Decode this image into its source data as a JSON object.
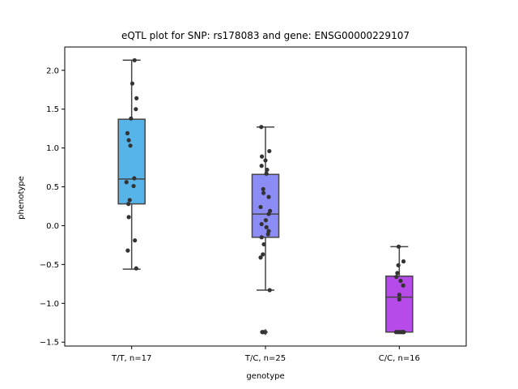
{
  "chart_data": {
    "type": "box",
    "title": "eQTL plot for SNP: rs178083 and gene: ENSG00000229107",
    "xlabel": "genotype",
    "ylabel": "phenotype",
    "ylim": [
      -1.55,
      2.3
    ],
    "yticks": [
      -1.5,
      -1.0,
      -0.5,
      0.0,
      0.5,
      1.0,
      1.5,
      2.0
    ],
    "ytick_labels": [
      "−1.5",
      "−1.0",
      "−0.5",
      "0.0",
      "0.5",
      "1.0",
      "1.5",
      "2.0"
    ],
    "grid": false,
    "categories": [
      "T/T, n=17",
      "T/C, n=25",
      "C/C, n=16"
    ],
    "colors": [
      "#56b4e9",
      "#8c8cf5",
      "#b74be9"
    ],
    "boxes": [
      {
        "q1": 0.28,
        "median": 0.6,
        "q3": 1.37,
        "whisker_low": -0.56,
        "whisker_high": 2.13,
        "outliers": []
      },
      {
        "q1": -0.15,
        "median": 0.15,
        "q3": 0.66,
        "whisker_low": -0.83,
        "whisker_high": 1.27,
        "outliers": [
          -1.37
        ]
      },
      {
        "q1": -1.37,
        "median": -0.92,
        "q3": -0.65,
        "whisker_low": -1.37,
        "whisker_high": -0.27,
        "outliers": []
      }
    ],
    "points": [
      [
        2.13,
        1.83,
        1.64,
        1.5,
        1.38,
        1.19,
        1.1,
        1.03,
        0.61,
        0.56,
        0.51,
        0.33,
        0.28,
        0.11,
        -0.19,
        -0.32,
        -0.55
      ],
      [
        1.27,
        0.96,
        0.89,
        0.84,
        0.77,
        0.72,
        0.67,
        0.47,
        0.42,
        0.37,
        0.24,
        0.19,
        0.15,
        0.07,
        0.02,
        -0.02,
        -0.07,
        -0.11,
        -0.15,
        -0.24,
        -0.37,
        -0.41,
        -0.83,
        -1.37,
        -1.37
      ],
      [
        -0.27,
        -0.46,
        -0.51,
        -0.61,
        -0.66,
        -0.71,
        -0.77,
        -0.89,
        -0.95,
        -1.37,
        -1.37,
        -1.37,
        -1.37,
        -1.37,
        -1.37,
        -1.37
      ]
    ],
    "jitter": [
      [
        0.09,
        0.02,
        0.15,
        0.13,
        -0.02,
        -0.13,
        -0.09,
        -0.04,
        0.08,
        -0.16,
        0.06,
        -0.06,
        -0.1,
        -0.09,
        0.1,
        -0.12,
        0.14
      ],
      [
        -0.13,
        0.12,
        -0.11,
        0.0,
        -0.12,
        0.05,
        0.03,
        -0.07,
        -0.06,
        0.1,
        -0.15,
        0.14,
        0.1,
        0.01,
        -0.12,
        0.03,
        0.1,
        0.08,
        -0.12,
        -0.05,
        -0.08,
        -0.15,
        0.13,
        -0.1,
        -0.06
      ],
      [
        -0.02,
        0.13,
        -0.03,
        -0.06,
        -0.09,
        0.04,
        0.12,
        0.0,
        0.0,
        -0.1,
        -0.05,
        0.0,
        0.05,
        0.09,
        0.12,
        0.14
      ]
    ]
  }
}
